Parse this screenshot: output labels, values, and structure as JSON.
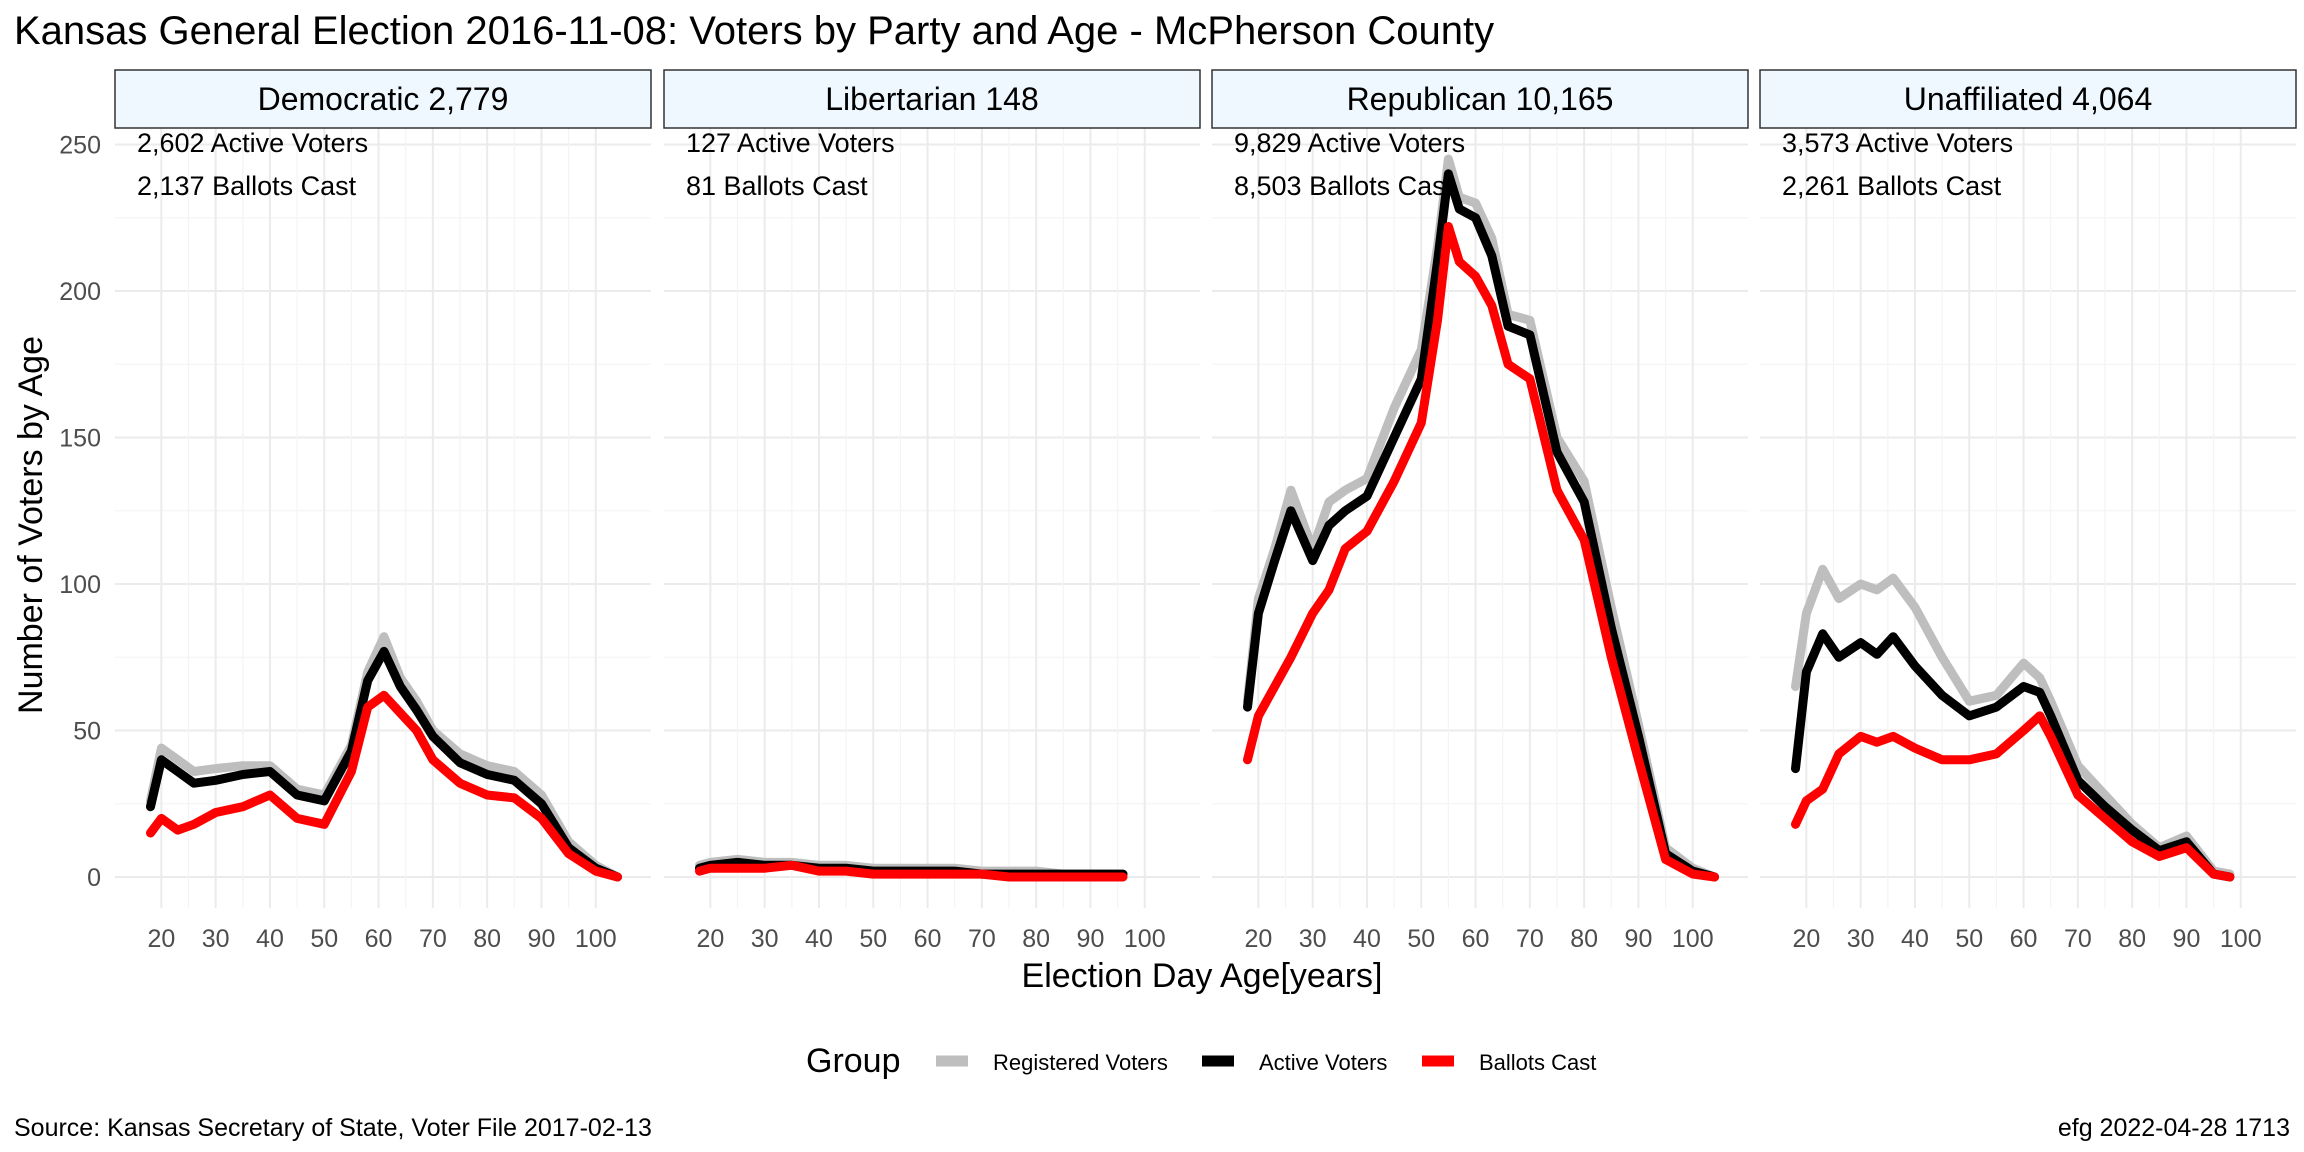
{
  "title": "Kansas General Election 2016-11-08:  Voters by Party and Age - McPherson County",
  "xlabel": "Election Day Age[years]",
  "ylabel": "Number of Voters by Age",
  "source": "Source:  Kansas Secretary of State, Voter File  2017-02-13",
  "credit": "efg 2022-04-28 1713",
  "legend": {
    "title": "Group",
    "items": [
      {
        "label": "Registered Voters",
        "color": "#bebebe"
      },
      {
        "label": "Active Voters",
        "color": "#000000"
      },
      {
        "label": "Ballots Cast",
        "color": "#ff0000"
      }
    ]
  },
  "chart_data": {
    "type": "line",
    "facets": [
      "Democratic 2,779",
      "Libertarian 148",
      "Republican 10,165",
      "Unaffiliated 4,064"
    ],
    "annotations": [
      [
        "2,602 Active Voters",
        "2,137 Ballots Cast"
      ],
      [
        "127 Active Voters",
        "81 Ballots Cast"
      ],
      [
        "9,829 Active Voters",
        "8,503 Ballots Cast"
      ],
      [
        "3,573 Active Voters",
        "2,261 Ballots Cast"
      ]
    ],
    "xlim": [
      18,
      104
    ],
    "ylim": [
      0,
      250
    ],
    "xticks": [
      20,
      30,
      40,
      50,
      60,
      70,
      80,
      90,
      100
    ],
    "yticks": [
      0,
      50,
      100,
      150,
      200,
      250
    ],
    "grid": true,
    "legend_position": "bottom",
    "series_names": [
      "Registered Voters",
      "Active Voters",
      "Ballots Cast"
    ],
    "series_colors": [
      "#bebebe",
      "#000000",
      "#ff0000"
    ],
    "panels": [
      {
        "x": [
          18,
          20,
          23,
          26,
          30,
          35,
          40,
          45,
          50,
          55,
          58,
          61,
          64,
          67,
          70,
          75,
          80,
          85,
          90,
          95,
          100,
          104
        ],
        "registered": [
          26,
          44,
          40,
          36,
          37,
          38,
          38,
          30,
          28,
          45,
          70,
          82,
          68,
          60,
          50,
          42,
          38,
          36,
          28,
          12,
          4,
          0
        ],
        "active": [
          24,
          40,
          36,
          32,
          33,
          35,
          36,
          28,
          26,
          43,
          67,
          77,
          65,
          57,
          48,
          39,
          35,
          33,
          25,
          10,
          3,
          0
        ],
        "ballots": [
          15,
          20,
          16,
          18,
          22,
          24,
          28,
          20,
          18,
          36,
          58,
          62,
          56,
          50,
          40,
          32,
          28,
          27,
          20,
          8,
          2,
          0
        ]
      },
      {
        "x": [
          18,
          20,
          25,
          30,
          35,
          40,
          45,
          50,
          55,
          60,
          65,
          70,
          75,
          80,
          85,
          90,
          95,
          96
        ],
        "registered": [
          4,
          5,
          6,
          5,
          5,
          4,
          4,
          3,
          3,
          3,
          3,
          2,
          2,
          2,
          1,
          1,
          1,
          1
        ],
        "active": [
          3,
          4,
          5,
          4,
          4,
          3,
          3,
          2,
          2,
          2,
          2,
          1,
          1,
          1,
          1,
          1,
          1,
          1
        ],
        "ballots": [
          2,
          3,
          3,
          3,
          4,
          2,
          2,
          1,
          1,
          1,
          1,
          1,
          0,
          0,
          0,
          0,
          0,
          0
        ]
      },
      {
        "x": [
          18,
          20,
          23,
          26,
          30,
          33,
          36,
          40,
          45,
          50,
          53,
          55,
          57,
          60,
          63,
          66,
          70,
          75,
          80,
          85,
          90,
          95,
          100,
          104
        ],
        "registered": [
          60,
          95,
          112,
          132,
          112,
          128,
          132,
          136,
          160,
          180,
          215,
          245,
          232,
          230,
          218,
          192,
          190,
          150,
          135,
          92,
          52,
          10,
          3,
          0
        ],
        "active": [
          58,
          90,
          108,
          125,
          108,
          120,
          125,
          130,
          150,
          170,
          210,
          240,
          228,
          225,
          212,
          188,
          185,
          145,
          128,
          85,
          48,
          8,
          2,
          0
        ],
        "ballots": [
          40,
          55,
          65,
          75,
          90,
          98,
          112,
          118,
          135,
          155,
          190,
          222,
          210,
          205,
          195,
          175,
          170,
          132,
          115,
          75,
          40,
          6,
          1,
          0
        ]
      },
      {
        "x": [
          18,
          20,
          23,
          26,
          30,
          33,
          36,
          40,
          45,
          50,
          55,
          60,
          63,
          65,
          70,
          75,
          80,
          85,
          90,
          95,
          98
        ],
        "registered": [
          65,
          90,
          105,
          95,
          100,
          98,
          102,
          92,
          75,
          60,
          62,
          73,
          68,
          60,
          38,
          28,
          18,
          10,
          14,
          2,
          1
        ],
        "active": [
          37,
          70,
          83,
          75,
          80,
          76,
          82,
          72,
          62,
          55,
          58,
          65,
          63,
          55,
          33,
          24,
          16,
          9,
          12,
          1,
          0
        ],
        "ballots": [
          18,
          26,
          30,
          42,
          48,
          46,
          48,
          44,
          40,
          40,
          42,
          50,
          55,
          48,
          28,
          20,
          12,
          7,
          10,
          1,
          0
        ]
      }
    ]
  }
}
